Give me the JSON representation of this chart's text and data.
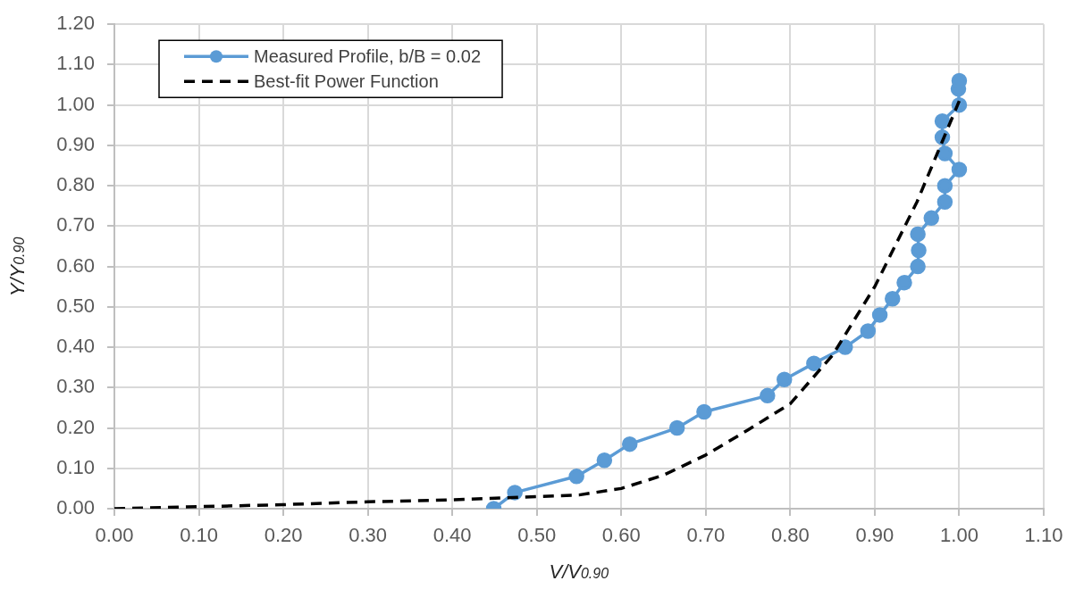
{
  "chart_data": {
    "type": "line",
    "xlabel": "V/V$_{0.90}$",
    "ylabel": "Y/Y$_{0.90}$",
    "xlim": [
      0,
      1.1
    ],
    "xticks": [
      {
        "value": 0,
        "label": "0.00"
      },
      {
        "value": 0.1,
        "label": "0.10"
      },
      {
        "value": 0.2,
        "label": "0.20"
      },
      {
        "value": 0.3,
        "label": "0.30"
      },
      {
        "value": 0.4,
        "label": "0.40"
      },
      {
        "value": 0.5,
        "label": "0.50"
      },
      {
        "value": 0.6,
        "label": "0.60"
      },
      {
        "value": 0.7,
        "label": "0.70"
      },
      {
        "value": 0.8,
        "label": "0.80"
      },
      {
        "value": 0.9,
        "label": "0.90"
      },
      {
        "value": 1,
        "label": "1.00"
      },
      {
        "value": 1.1,
        "label": "1.10"
      }
    ],
    "ylim": [
      0,
      1.2
    ],
    "yticks": [
      {
        "value": 0,
        "label": "0.00"
      },
      {
        "value": 0.1,
        "label": "0.10"
      },
      {
        "value": 0.2,
        "label": "0.20"
      },
      {
        "value": 0.3,
        "label": "0.30"
      },
      {
        "value": 0.4,
        "label": "0.40"
      },
      {
        "value": 0.5,
        "label": "0.50"
      },
      {
        "value": 0.6,
        "label": "0.60"
      },
      {
        "value": 0.7,
        "label": "0.70"
      },
      {
        "value": 0.8,
        "label": "0.80"
      },
      {
        "value": 0.9,
        "label": "0.90"
      },
      {
        "value": 1,
        "label": "1.00"
      },
      {
        "value": 1.1,
        "label": "1.10"
      },
      {
        "value": 1.2,
        "label": "1.20"
      }
    ],
    "grid": true,
    "legend": "top left",
    "series": [
      {
        "name": "Measured Profile, b/B = 0.02",
        "color": "#5b9bd5",
        "marker": "circle",
        "line_style": "solid",
        "x": [
          0.449,
          0.474,
          0.547,
          0.58,
          0.61,
          0.666,
          0.698,
          0.773,
          0.793,
          0.828,
          0.865,
          0.892,
          0.906,
          0.921,
          0.935,
          0.951,
          0.952,
          0.951,
          0.967,
          0.983,
          0.983,
          1.0,
          0.983,
          0.98,
          0.98,
          1.0,
          0.999,
          1.0
        ],
        "values": [
          0,
          0.04,
          0.08,
          0.12,
          0.16,
          0.2,
          0.24,
          0.28,
          0.32,
          0.36,
          0.4,
          0.44,
          0.48,
          0.52,
          0.56,
          0.6,
          0.64,
          0.68,
          0.72,
          0.76,
          0.8,
          0.84,
          0.88,
          0.92,
          0.96,
          1.0,
          1.04,
          1.06
        ]
      },
      {
        "name": "Best-fit Power Function",
        "color": "#000000",
        "marker": "none",
        "line_style": "dashed",
        "x": [
          0,
          0.1,
          0.2,
          0.3,
          0.4,
          0.5,
          0.55,
          0.6,
          0.65,
          0.7,
          0.75,
          0.8,
          0.85,
          0.9,
          0.95,
          1.0
        ],
        "values": [
          0,
          0.005,
          0.01,
          0.017,
          0.022,
          0.03,
          0.034,
          0.05,
          0.083,
          0.133,
          0.195,
          0.26,
          0.38,
          0.55,
          0.76,
          1.01
        ]
      }
    ]
  }
}
